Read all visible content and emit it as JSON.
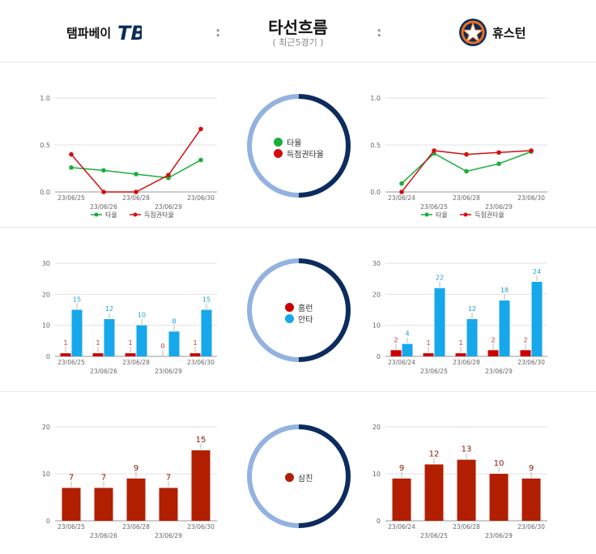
{
  "header": {
    "home_team": "탬파베이",
    "away_team": "휴스턴",
    "title": "타선흐름",
    "subtitle": "( 최근5경기 )",
    "separator": ":",
    "home_logo": "TB",
    "colors": {
      "primary": "#0b2b5c",
      "accent": "#eb6e1f"
    }
  },
  "colors": {
    "avg": "#1aae3b",
    "risp": "#d20f0f",
    "hr": "#cc0000",
    "hits": "#16a8ea",
    "so": "#b11f00",
    "ring_light": "#93b2e0",
    "ring_dark": "#0c2c5f"
  },
  "legends": {
    "avg": {
      "dot1": "타율",
      "dot2": "득점권타율",
      "line1": "타율",
      "line2": "득점권타율"
    },
    "hr_hits": {
      "dot1": "홈런",
      "dot2": "안타"
    },
    "so": {
      "dot1": "삼진"
    }
  },
  "chart_data": [
    {
      "type": "line",
      "team": "탬파베이",
      "x": [
        "23/06/25",
        "23/06/26",
        "23/06/28",
        "23/06/29",
        "23/06/30"
      ],
      "series": [
        {
          "name": "타율",
          "values": [
            0.26,
            0.23,
            0.19,
            0.15,
            0.34
          ]
        },
        {
          "name": "득점권타율",
          "values": [
            0.4,
            0.0,
            0.0,
            0.18,
            0.67
          ]
        }
      ],
      "yticks": [
        "0.0",
        "0.5",
        "1.0"
      ],
      "ylim": [
        0,
        1
      ]
    },
    {
      "type": "line",
      "team": "휴스턴",
      "x": [
        "23/06/24",
        "23/06/25",
        "23/06/28",
        "23/06/29",
        "23/06/30"
      ],
      "series": [
        {
          "name": "타율",
          "values": [
            0.09,
            0.41,
            0.22,
            0.3,
            0.43
          ]
        },
        {
          "name": "득점권타율",
          "values": [
            0.0,
            0.44,
            0.4,
            0.42,
            0.44
          ]
        }
      ],
      "yticks": [
        "0.0",
        "0.5",
        "1.0"
      ],
      "ylim": [
        0,
        1
      ]
    },
    {
      "type": "bar",
      "team": "탬파베이",
      "categories": [
        "23/06/25",
        "23/06/26",
        "23/06/28",
        "23/06/29",
        "23/06/30"
      ],
      "series": [
        {
          "name": "홈런",
          "values": [
            1,
            1,
            1,
            0,
            1
          ]
        },
        {
          "name": "안타",
          "values": [
            15,
            12,
            10,
            8,
            15
          ]
        }
      ],
      "yticks": [
        "0",
        "10",
        "20",
        "30"
      ],
      "ylim": [
        0,
        30
      ]
    },
    {
      "type": "bar",
      "team": "휴스턴",
      "categories": [
        "23/06/24",
        "23/06/25",
        "23/06/28",
        "23/06/29",
        "23/06/30"
      ],
      "series": [
        {
          "name": "홈런",
          "values": [
            2,
            1,
            1,
            2,
            2
          ]
        },
        {
          "name": "안타",
          "values": [
            4,
            22,
            12,
            18,
            24
          ]
        }
      ],
      "yticks": [
        "0",
        "10",
        "20",
        "30"
      ],
      "ylim": [
        0,
        30
      ]
    },
    {
      "type": "bar",
      "team": "탬파베이",
      "categories": [
        "23/06/25",
        "23/06/26",
        "23/06/28",
        "23/06/29",
        "23/06/30"
      ],
      "series": [
        {
          "name": "삼진",
          "values": [
            7,
            7,
            9,
            7,
            15
          ]
        }
      ],
      "yticks": [
        "0",
        "10",
        "20"
      ],
      "ylim": [
        0,
        20
      ]
    },
    {
      "type": "bar",
      "team": "휴스턴",
      "categories": [
        "23/06/24",
        "23/06/25",
        "23/06/28",
        "23/06/29",
        "23/06/30"
      ],
      "series": [
        {
          "name": "삼진",
          "values": [
            9,
            12,
            13,
            10,
            9
          ]
        }
      ],
      "yticks": [
        "0",
        "10",
        "20"
      ],
      "ylim": [
        0,
        20
      ]
    }
  ]
}
